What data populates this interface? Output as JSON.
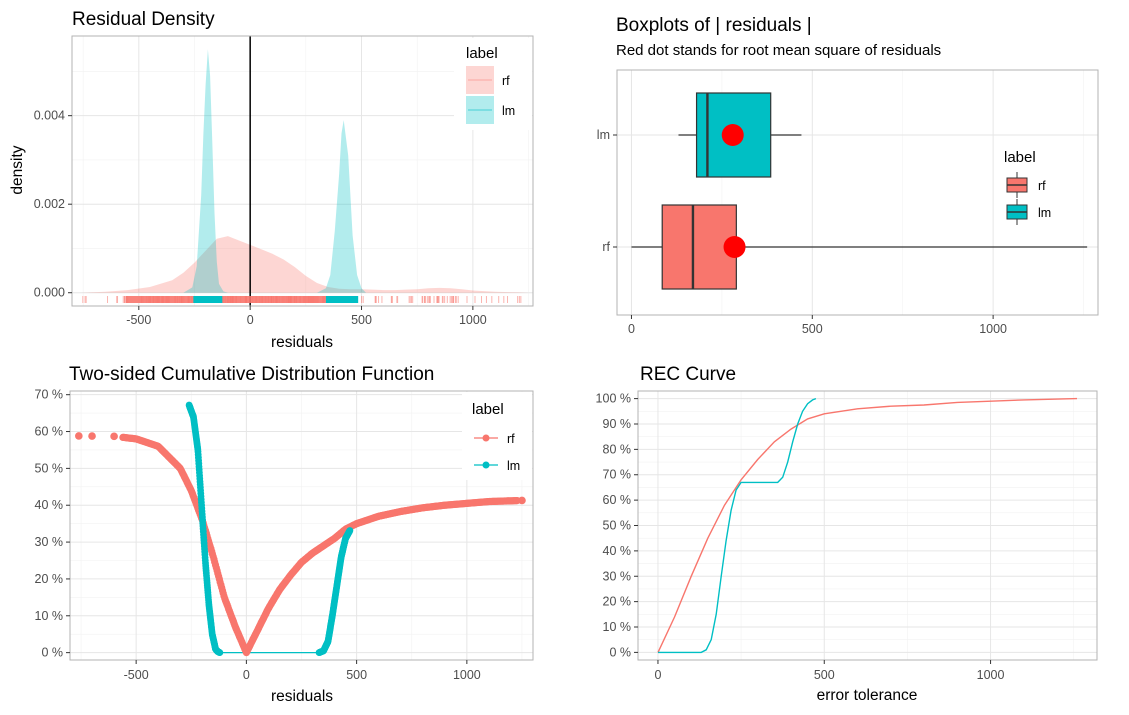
{
  "colors": {
    "rf": "#F8766D",
    "lm": "#00BFC4",
    "rms": "#FF0000"
  },
  "chart_data": [
    {
      "type": "area",
      "title": "Residual Density",
      "xlabel": "residuals",
      "ylabel": "density",
      "xlim": [
        -800,
        1270
      ],
      "ylim": [
        -0.0003,
        0.0058
      ],
      "xticks": [
        -500,
        0,
        500,
        1000
      ],
      "xtick_labels": [
        "-500",
        "0",
        "500",
        "1000"
      ],
      "yticks": [
        0,
        0.002,
        0.004
      ],
      "ytick_labels": [
        "0.000",
        "0.002",
        "0.004"
      ],
      "legend": {
        "title": "label",
        "position": "top-right"
      },
      "series": [
        {
          "name": "rf",
          "x": [
            -760,
            -650,
            -550,
            -450,
            -350,
            -300,
            -250,
            -200,
            -150,
            -100,
            -50,
            0,
            50,
            100,
            150,
            200,
            250,
            300,
            350,
            400,
            450,
            500,
            550,
            600,
            650,
            700,
            750,
            800,
            850,
            900,
            950,
            1000,
            1100,
            1200,
            1250
          ],
          "y": [
            0,
            2e-05,
            6e-05,
            0.00013,
            0.00028,
            0.00045,
            0.00068,
            0.00095,
            0.00122,
            0.00128,
            0.00118,
            0.00108,
            0.00098,
            0.00088,
            0.00075,
            0.00058,
            0.00038,
            0.00022,
            0.00013,
            9e-05,
            8e-05,
            8e-05,
            7e-05,
            6e-05,
            6e-05,
            7e-05,
            8e-05,
            0.0001,
            0.00011,
            0.0001,
            8e-05,
            5e-05,
            2e-05,
            1e-05,
            0
          ]
        },
        {
          "name": "lm",
          "x": [
            -300,
            -260,
            -240,
            -220,
            -210,
            -200,
            -190,
            -180,
            -170,
            -160,
            -150,
            -140,
            -120,
            -100,
            300,
            340,
            360,
            380,
            400,
            410,
            420,
            440,
            460,
            480,
            500,
            520
          ],
          "y": [
            0,
            0.00012,
            0.0006,
            0.0022,
            0.0036,
            0.0047,
            0.0055,
            0.0049,
            0.0034,
            0.0018,
            0.0007,
            0.0002,
            3e-05,
            0,
            0,
            0.0001,
            0.0004,
            0.0014,
            0.0027,
            0.0036,
            0.0039,
            0.0031,
            0.0013,
            0.0004,
            0.0001,
            0
          ]
        }
      ],
      "vline_x": 0
    },
    {
      "type": "box",
      "title": "Boxplots of | residuals |",
      "subtitle": "Red dot stands for root mean square of residuals",
      "xlim": [
        -40,
        1290
      ],
      "xticks": [
        0,
        500,
        1000
      ],
      "xtick_labels": [
        "0",
        "500",
        "1000"
      ],
      "categories": [
        "lm",
        "rf"
      ],
      "legend": {
        "title": "label",
        "position": "right"
      },
      "boxes": [
        {
          "name": "lm",
          "whisker_low": 130,
          "q1": 180,
          "median": 210,
          "q3": 385,
          "whisker_high": 470,
          "rms": 280
        },
        {
          "name": "rf",
          "whisker_low": 0,
          "q1": 85,
          "median": 170,
          "q3": 290,
          "whisker_high": 1260,
          "rms": 285
        }
      ]
    },
    {
      "type": "scatter",
      "title": "Two-sided Cumulative Distribution Function",
      "xlabel": "residuals",
      "xlim": [
        -800,
        1300
      ],
      "ylim": [
        -0.02,
        0.71
      ],
      "xticks": [
        -500,
        0,
        500,
        1000
      ],
      "xtick_labels": [
        "-500",
        "0",
        "500",
        "1000"
      ],
      "yticks": [
        0,
        0.1,
        0.2,
        0.3,
        0.4,
        0.5,
        0.6,
        0.7
      ],
      "ytick_labels": [
        "0 %",
        "10 %",
        "20 %",
        "30 %",
        "40 %",
        "50 %",
        "60 %",
        "70 %"
      ],
      "legend": {
        "title": "label",
        "position": "top-right"
      },
      "series": [
        {
          "name": "rf",
          "x": [
            -760,
            -600,
            -500,
            -400,
            -300,
            -250,
            -200,
            -150,
            -100,
            -50,
            0,
            50,
            100,
            150,
            200,
            250,
            300,
            350,
            400,
            450,
            500,
            600,
            700,
            800,
            900,
            1000,
            1100,
            1200,
            1250
          ],
          "y": [
            0.588,
            0.587,
            0.58,
            0.56,
            0.5,
            0.44,
            0.36,
            0.26,
            0.15,
            0.07,
            0,
            0.06,
            0.12,
            0.17,
            0.21,
            0.245,
            0.27,
            0.29,
            0.31,
            0.335,
            0.35,
            0.37,
            0.383,
            0.393,
            0.4,
            0.405,
            0.41,
            0.412,
            0.413
          ]
        },
        {
          "name": "lm",
          "x": [
            -260,
            -240,
            -220,
            -200,
            -185,
            -170,
            -155,
            -140,
            -130,
            -120,
            330,
            350,
            370,
            390,
            410,
            430,
            450,
            470
          ],
          "y": [
            0.672,
            0.64,
            0.55,
            0.37,
            0.24,
            0.13,
            0.05,
            0.01,
            0.003,
            0,
            0,
            0.005,
            0.03,
            0.1,
            0.18,
            0.26,
            0.31,
            0.332
          ]
        }
      ]
    },
    {
      "type": "line",
      "title": "REC Curve",
      "xlabel": "error tolerance",
      "xlim": [
        -60,
        1320
      ],
      "ylim": [
        -0.03,
        1.03
      ],
      "xticks": [
        0,
        500,
        1000
      ],
      "xtick_labels": [
        "0",
        "500",
        "1000"
      ],
      "yticks": [
        0,
        0.1,
        0.2,
        0.3,
        0.4,
        0.5,
        0.6,
        0.7,
        0.8,
        0.9,
        1.0
      ],
      "ytick_labels": [
        "0 %",
        "10 %",
        "20 %",
        "30 %",
        "40 %",
        "50 %",
        "60 %",
        "70 %",
        "80 %",
        "90 %",
        "100 %"
      ],
      "series": [
        {
          "name": "rf",
          "x": [
            0,
            50,
            100,
            150,
            200,
            250,
            300,
            350,
            400,
            450,
            500,
            600,
            700,
            800,
            900,
            1000,
            1100,
            1260
          ],
          "y": [
            0,
            0.14,
            0.3,
            0.45,
            0.58,
            0.68,
            0.76,
            0.83,
            0.88,
            0.92,
            0.94,
            0.96,
            0.97,
            0.975,
            0.985,
            0.99,
            0.995,
            1.0
          ]
        },
        {
          "name": "lm",
          "x": [
            0,
            130,
            145,
            160,
            175,
            190,
            205,
            220,
            235,
            250,
            360,
            375,
            390,
            405,
            420,
            435,
            450,
            465,
            475
          ],
          "y": [
            0,
            0,
            0.01,
            0.05,
            0.15,
            0.3,
            0.44,
            0.56,
            0.64,
            0.67,
            0.67,
            0.69,
            0.75,
            0.83,
            0.9,
            0.95,
            0.98,
            0.995,
            1.0
          ]
        }
      ]
    }
  ]
}
